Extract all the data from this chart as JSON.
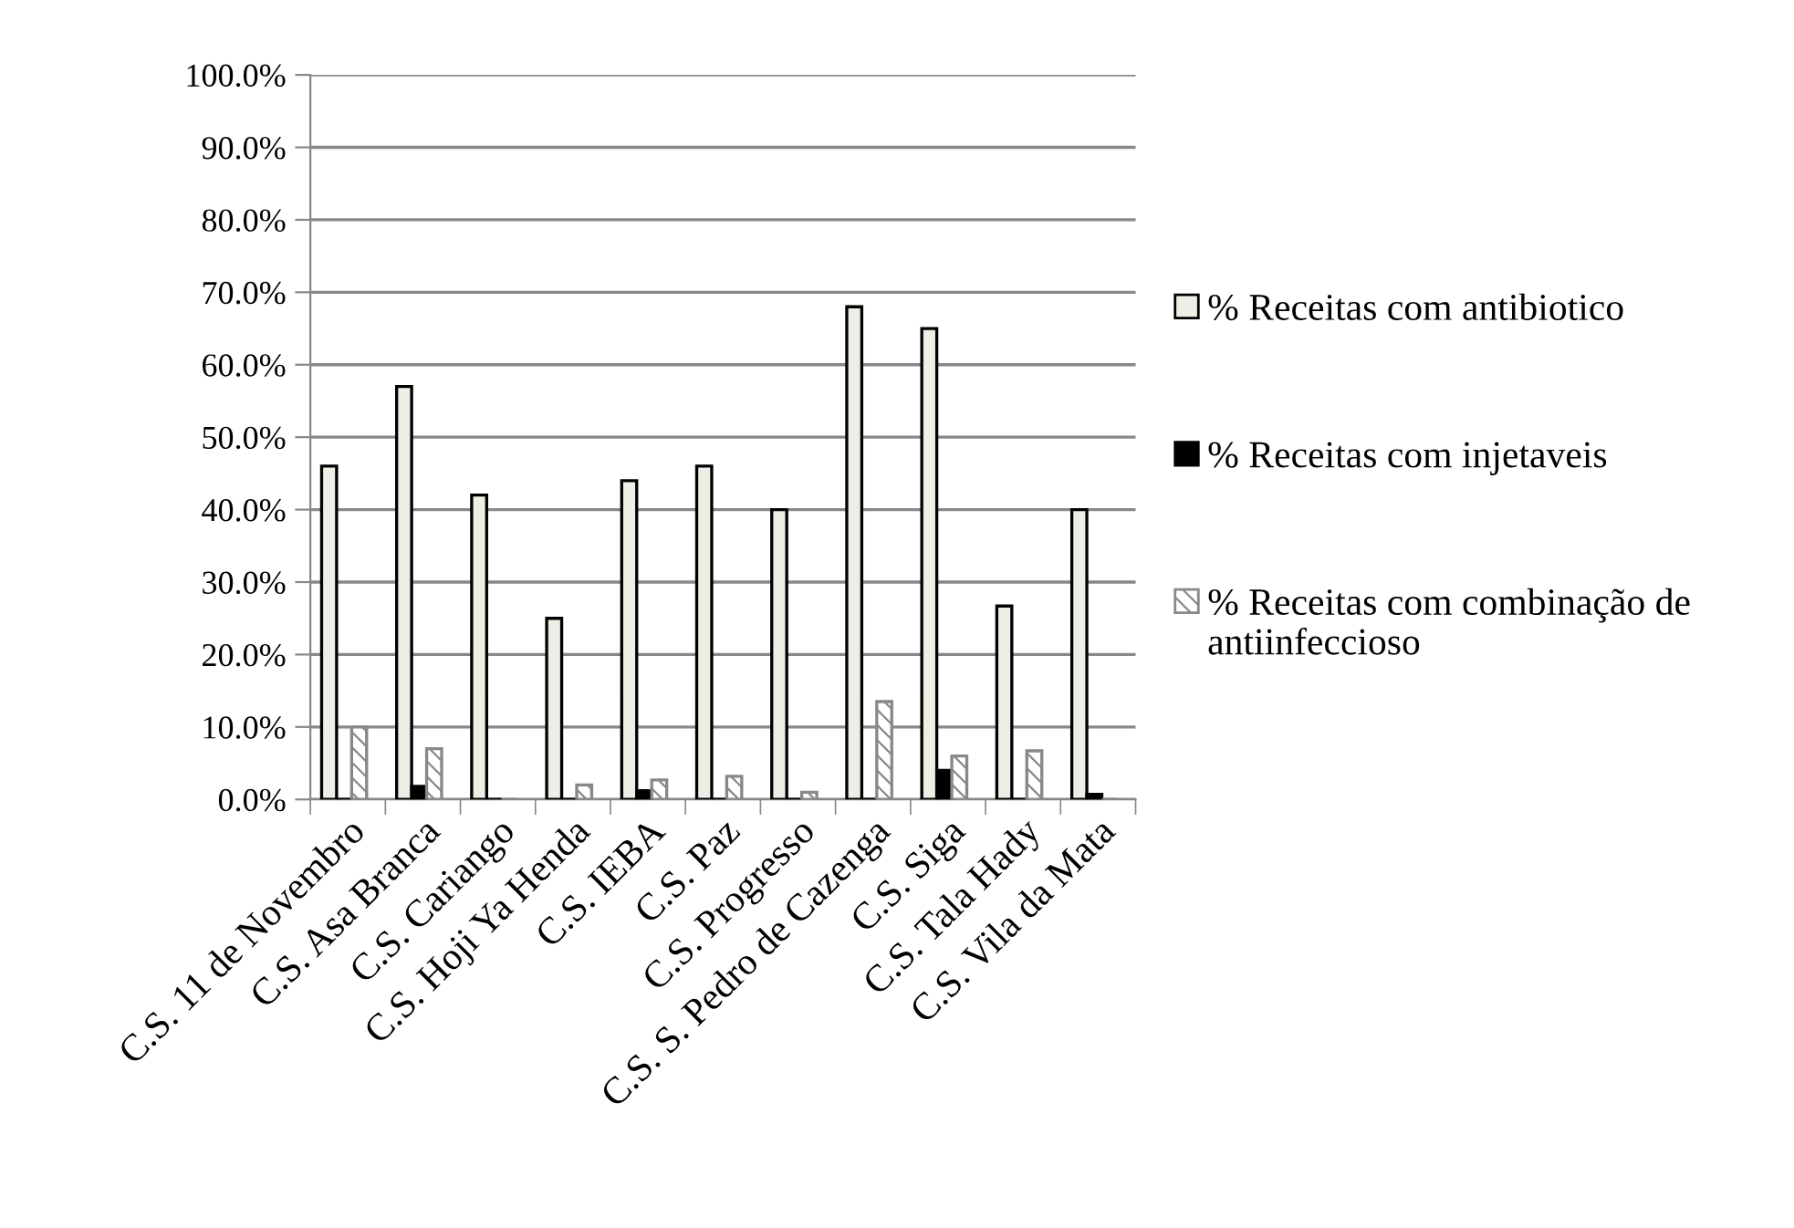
{
  "chart_data": {
    "type": "bar",
    "categories": [
      "C.S. 11 de Novembro",
      "C.S. Asa Branca",
      "C.S. Cariango",
      "C.S. Hoji Ya Henda",
      "C.S. IEBA",
      "C.S. Paz",
      "C.S. Progresso",
      "C.S. S. Pedro de Cazenga",
      "C.S. Siga",
      "C.S. Tala Hady",
      "C.S. Vila da Mata"
    ],
    "series": [
      {
        "name": "% Receitas com antibiotico",
        "color": "#eeeee6",
        "values": [
          46,
          57,
          42,
          25,
          44,
          46,
          40,
          68,
          65,
          26.7,
          40
        ]
      },
      {
        "name": "% Receitas com injetaveis",
        "color": "#000000",
        "values": [
          0,
          1.8,
          0,
          0,
          1.2,
          0,
          0,
          0,
          4,
          0,
          0.7
        ]
      },
      {
        "name": "% Receitas com combinação de antiinfeccioso",
        "color": "#888888",
        "values": [
          10,
          7,
          0,
          2,
          2.7,
          3.2,
          1,
          13.5,
          6,
          6.7,
          0
        ]
      }
    ],
    "ylim": [
      0,
      100
    ],
    "yticks": [
      {
        "value": 0,
        "label": "0.0%"
      },
      {
        "value": 10,
        "label": "10.0%"
      },
      {
        "value": 20,
        "label": "20.0%"
      },
      {
        "value": 30,
        "label": "30.0%"
      },
      {
        "value": 40,
        "label": "40.0%"
      },
      {
        "value": 50,
        "label": "50.0%"
      },
      {
        "value": 60,
        "label": "60.0%"
      },
      {
        "value": 70,
        "label": "70.0%"
      },
      {
        "value": 80,
        "label": "80.0%"
      },
      {
        "value": 90,
        "label": "90.0%"
      },
      {
        "value": 100,
        "label": "100.0%"
      }
    ],
    "grid": "y",
    "legend": "right"
  }
}
